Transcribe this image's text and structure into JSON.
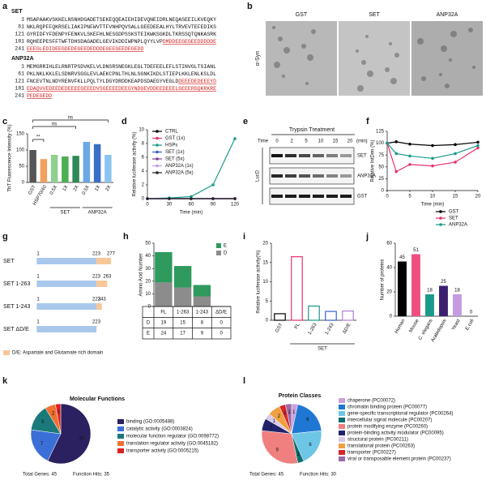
{
  "panel_labels": [
    "a",
    "b",
    "c",
    "d",
    "e",
    "f",
    "g",
    "h",
    "i",
    "j",
    "k",
    "l"
  ],
  "sequences": [
    {
      "name": "SET",
      "lines": [
        {
          "number": "1",
          "black": "MSAPAAKVSKKELNSNHDGADETSEKEQQEAIEHIDEVQNEIDRLNEQASEEILKVEQKY",
          "red": ""
        },
        {
          "number": "61",
          "black": "NKLRQPFFQKRSELIAKIPNFWVTTFVNHPQVSALLGEEDEEALHYLTRVEVTEFEDIKS",
          "red": ""
        },
        {
          "number": "121",
          "black": "GYRIDFYFDENPYFENKVLSKEFHLNESGDPSSKSTEIKWKSGKDLTKRSSQTQNKASRK",
          "red": ""
        },
        {
          "number": "181",
          "black": "RQHEEPESFFTWFTDHSDAGADELGEVIKDDIWPNPLQYYLVP",
          "red": "DMDDEEGEGEEDDDDDE"
        },
        {
          "number": "241",
          "black": "",
          "red": "EEEGLEDIDEEGDEDEGEEDEDDDEGEEGEEDEGEDD"
        }
      ]
    },
    {
      "name": "ANP32A",
      "lines": [
        {
          "number": "1",
          "black": "MEMGRRIHLELRNRTPSDVKELVLDNSRSNEGKLEGLTDEFEELEFLSTINVGLTSIANL",
          "red": ""
        },
        {
          "number": "61",
          "black": "PKLNKLKKLELSDNRVSGGLEVLAEKCPNLTHLNLSGNKIKDLSTIEPLKKLENLKSLDL",
          "red": ""
        },
        {
          "number": "121",
          "black": "FNCEVTNLNDYRENVFKLLPQLTYLDGYDRDDKEAPDSDAEGYVEGLD",
          "red": "DEEEDEDEEEYD"
        },
        {
          "number": "181",
          "black": "",
          "red": "EDAQVVEDEEDEDEEEEGEEEDVSGEEEEDEEGYNDGEVDDEEDEEELGEEERGQKRKRE"
        },
        {
          "number": "241",
          "black": "",
          "red": "PEDEGEDD"
        }
      ]
    }
  ],
  "microscopy": {
    "labels": [
      "GST",
      "SET",
      "ANP32A"
    ],
    "stain": "α-Syn"
  },
  "gel": {
    "title": "Trypsin Treatment",
    "time_label": "Time",
    "times": [
      "0",
      "2",
      "5",
      "10",
      "15",
      "20"
    ],
    "unit": "(min)",
    "rows": [
      "SET",
      "ANP32A",
      "GST"
    ],
    "group": "LucD"
  },
  "domains": {
    "rows": [
      {
        "name": "SET",
        "marks": [
          1,
          223,
          277
        ]
      },
      {
        "name": "SET 1-263",
        "marks": [
          1,
          223,
          263
        ]
      },
      {
        "name": "SET 1-243",
        "marks": [
          1,
          223,
          243
        ]
      },
      {
        "name": "SET ΔD/E",
        "marks": [
          1,
          223
        ]
      }
    ],
    "legend": "D/E: Aspartate and Glutamate rich domain"
  },
  "chart_data": [
    {
      "type": "bar",
      "ylabel": "ThT Fluorescence Intensity (%)",
      "categories": [
        "GST",
        "HSP70/40",
        "0.5X",
        "1X",
        "2X",
        "0.5X",
        "1X",
        "2X"
      ],
      "values": [
        100,
        72,
        85,
        80,
        82,
        125,
        118,
        85
      ],
      "colors": [
        "#555555",
        "#f0a060",
        "#8fd08f",
        "#4caf50",
        "#2e8b57",
        "#6aa8e8",
        "#3a6fc7",
        "#8cc4f0"
      ],
      "ylim": [
        0,
        150
      ],
      "yticks": [
        0,
        50,
        100,
        150
      ],
      "group_labels": [
        "SET",
        "ANP32A"
      ],
      "annotations": [
        "ns",
        "ns",
        "**"
      ]
    },
    {
      "type": "line",
      "ylabel": "Relative luciferase activity (%)",
      "xlabel": "Time (min)",
      "x": [
        0,
        30,
        60,
        90,
        120
      ],
      "xlim": [
        0,
        120
      ],
      "xticks": [
        0,
        30,
        60,
        90,
        120
      ],
      "ylim": [
        0,
        10
      ],
      "yticks": [
        0,
        2,
        4,
        6,
        8,
        10
      ],
      "series": [
        {
          "name": "CTRL",
          "color": "#000000",
          "values": [
            0,
            0,
            0,
            0,
            0
          ]
        },
        {
          "name": "GST (1x)",
          "color": "#e8336d",
          "values": [
            0,
            0,
            0,
            0,
            0
          ]
        },
        {
          "name": "HSPs",
          "color": "#1a9a8a",
          "values": [
            0,
            0.1,
            0.3,
            2,
            8.7
          ]
        },
        {
          "name": "SET (1x)",
          "color": "#3a5fc8",
          "values": [
            0,
            0,
            0,
            0,
            0
          ]
        },
        {
          "name": "SET (5x)",
          "color": "#7a3fa0",
          "values": [
            0,
            0,
            0,
            0,
            0
          ]
        },
        {
          "name": "ANP32A (1x)",
          "color": "#c39be0",
          "values": [
            0,
            0,
            0,
            0,
            0
          ]
        },
        {
          "name": "ANP32A (5x)",
          "color": "#222222",
          "values": [
            0,
            0,
            0,
            0,
            0
          ]
        }
      ]
    },
    {
      "type": "line",
      "ylabel": "Relative IntDen (%)",
      "xlabel": "Time (min)",
      "x": [
        0,
        2,
        5,
        10,
        15,
        20
      ],
      "xlim": [
        0,
        20
      ],
      "xticks": [
        0,
        5,
        10,
        15,
        20
      ],
      "ylim": [
        0,
        125
      ],
      "yticks": [
        0,
        25,
        50,
        75,
        100,
        125
      ],
      "series": [
        {
          "name": "GST",
          "color": "#000000",
          "values": [
            100,
            103,
            98,
            95,
            97,
            102
          ]
        },
        {
          "name": "SET",
          "color": "#e8336d",
          "values": [
            100,
            40,
            55,
            52,
            60,
            90
          ]
        },
        {
          "name": "ANP32A",
          "color": "#1a9a8a",
          "values": [
            100,
            78,
            73,
            68,
            78,
            95
          ]
        }
      ]
    },
    {
      "type": "stacked-bar",
      "ylabel": "Amino Acid Number",
      "categories": [
        "FL",
        "1-263",
        "1-243",
        "ΔD/E"
      ],
      "ylim": [
        0,
        50
      ],
      "yticks": [
        0,
        10,
        20,
        30,
        40,
        50
      ],
      "series": [
        {
          "name": "D",
          "color": "#8c8c8c",
          "values": [
            19,
            15,
            8,
            0
          ]
        },
        {
          "name": "E",
          "color": "#2e9a5e",
          "values": [
            24,
            17,
            9,
            0
          ]
        }
      ]
    },
    {
      "type": "bar",
      "ylabel": "Relative luciferase activity(%)",
      "categories": [
        "GST",
        "FL",
        "1-263",
        "1-243",
        "ΔD/E"
      ],
      "values": [
        1.7,
        16.5,
        3.7,
        2.3,
        2.4
      ],
      "colors": [
        "#000000",
        "#e8336d",
        "#1a9a8a",
        "#3a5fc8",
        "#b07fd0"
      ],
      "outline": true,
      "ylim": [
        0,
        20
      ],
      "yticks": [
        0,
        5,
        10,
        15,
        20
      ],
      "group_labels": [
        "SET"
      ]
    },
    {
      "type": "bar",
      "ylabel": "Number of proteins",
      "categories": [
        "Human",
        "Mouse",
        "C. elegans",
        "Arabidopsis",
        "Yeast",
        "E.coli"
      ],
      "values": [
        45,
        51,
        18,
        25,
        18,
        0
      ],
      "colors": [
        "#000000",
        "#ef4f7f",
        "#1a9a8a",
        "#3b2070",
        "#c39be0",
        "#888888"
      ],
      "value_labels_shown": true,
      "ylim": [
        0,
        60
      ],
      "yticks": [
        0,
        20,
        40,
        60
      ]
    },
    {
      "type": "pie",
      "title": "Molecular Functions",
      "categories": [
        "binding (GO:0005488)",
        "catalytic activity (GO:0003824)",
        "molecular function regulator (GO:0098772)",
        "translation regulator activity (GO:0045182)",
        "transporter activity (GO:0005215)"
      ],
      "values": [
        20,
        7,
        5,
        2,
        1
      ],
      "colors": [
        "#2b2160",
        "#3b6fd8",
        "#1a7a7a",
        "#f07030",
        "#e02020"
      ],
      "footer": [
        "Total Genes: 45",
        "Function Hits: 35"
      ]
    },
    {
      "type": "pie",
      "title": "Protein Classes",
      "categories": [
        "chaperone (PC00072)",
        "chromatin binding protein (PC00077)",
        "gene-specific transcriptional regulator (PC00264)",
        "intercellular signal molecule (PC00207)",
        "protein modifying enzyme (PC00260)",
        "protein-binding activity modulator (PC00095)",
        "structural protein (PC00211)",
        "translational protein (PC00263)",
        "transporter (PC00227)",
        "viral or transposable element protein (PC00237)"
      ],
      "values": [
        1,
        6,
        6,
        1,
        9,
        2,
        1,
        2,
        1,
        1
      ],
      "colors": [
        "#c9a0dc",
        "#1f77d4",
        "#6ec6e6",
        "#0e6e6e",
        "#f08080",
        "#22226b",
        "#d9c9e6",
        "#f0a040",
        "#d62728",
        "#9a6aa8"
      ],
      "footer": [
        "Total Genes: 45",
        "Function Hits: 30"
      ]
    }
  ]
}
